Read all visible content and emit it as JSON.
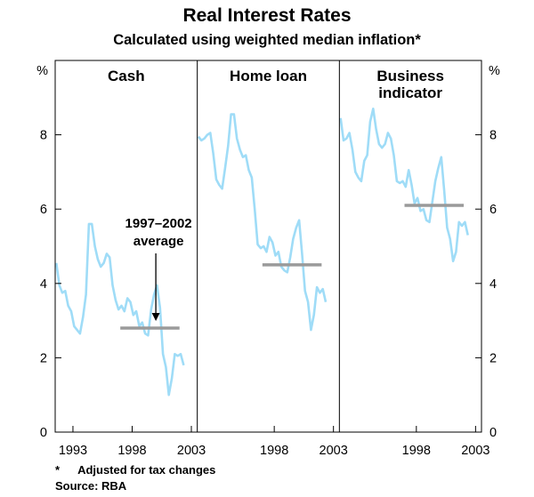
{
  "title": "Real Interest Rates",
  "subtitle": "Calculated using weighted median inflation*",
  "footnote_marker": "*",
  "footnote_text": "Adjusted for tax changes",
  "source": "Source: RBA",
  "colors": {
    "line": "#9fdcf7",
    "average": "#9a9a9a",
    "axis": "#000000"
  },
  "chart_data": {
    "type": "line",
    "yunit": "%",
    "ylim": [
      0,
      10
    ],
    "yticks": [
      0,
      2,
      4,
      6,
      8
    ],
    "annotation": {
      "text1": "1997–2002",
      "text2": "average",
      "x": 2000.0,
      "y": 2.8
    },
    "panels": [
      {
        "name": "Cash",
        "title_lines": [
          "Cash"
        ],
        "xlim": [
          1991.5,
          2003.5
        ],
        "xticks": [
          {
            "value": 1993,
            "label": "1993"
          },
          {
            "value": 1998,
            "label": "1998"
          },
          {
            "value": 2003,
            "label": "2003"
          }
        ],
        "average": {
          "value": 2.8,
          "from": 1997.0,
          "to": 2002.0
        },
        "series": {
          "name": "Cash",
          "points": [
            [
              1991.6,
              4.55
            ],
            [
              1991.85,
              3.95
            ],
            [
              1992.1,
              3.75
            ],
            [
              1992.35,
              3.8
            ],
            [
              1992.6,
              3.4
            ],
            [
              1992.85,
              3.25
            ],
            [
              1993.1,
              2.85
            ],
            [
              1993.35,
              2.75
            ],
            [
              1993.6,
              2.65
            ],
            [
              1993.85,
              3.1
            ],
            [
              1994.1,
              3.7
            ],
            [
              1994.35,
              5.6
            ],
            [
              1994.6,
              5.6
            ],
            [
              1994.85,
              5.0
            ],
            [
              1995.1,
              4.65
            ],
            [
              1995.35,
              4.45
            ],
            [
              1995.6,
              4.55
            ],
            [
              1995.85,
              4.8
            ],
            [
              1996.1,
              4.7
            ],
            [
              1996.35,
              3.95
            ],
            [
              1996.6,
              3.55
            ],
            [
              1996.85,
              3.3
            ],
            [
              1997.1,
              3.4
            ],
            [
              1997.35,
              3.25
            ],
            [
              1997.6,
              3.6
            ],
            [
              1997.85,
              3.5
            ],
            [
              1998.1,
              3.15
            ],
            [
              1998.35,
              3.25
            ],
            [
              1998.6,
              2.85
            ],
            [
              1998.85,
              2.95
            ],
            [
              1999.1,
              2.65
            ],
            [
              1999.35,
              2.6
            ],
            [
              1999.6,
              3.3
            ],
            [
              1999.85,
              3.7
            ],
            [
              2000.1,
              3.95
            ],
            [
              2000.35,
              3.35
            ],
            [
              2000.6,
              2.1
            ],
            [
              2000.85,
              1.75
            ],
            [
              2001.1,
              1.0
            ],
            [
              2001.35,
              1.45
            ],
            [
              2001.6,
              2.1
            ],
            [
              2001.85,
              2.05
            ],
            [
              2002.1,
              2.1
            ],
            [
              2002.35,
              1.8
            ]
          ]
        }
      },
      {
        "name": "Home loan",
        "title_lines": [
          "Home loan"
        ],
        "xlim": [
          1991.5,
          2003.5
        ],
        "xticks": [
          {
            "value": 1998,
            "label": "1998"
          },
          {
            "value": 2003,
            "label": "2003"
          }
        ],
        "average": {
          "value": 4.5,
          "from": 1997.0,
          "to": 2002.0
        },
        "series": {
          "name": "Home loan",
          "points": [
            [
              1991.6,
              7.95
            ],
            [
              1991.85,
              7.85
            ],
            [
              1992.1,
              7.9
            ],
            [
              1992.35,
              8.0
            ],
            [
              1992.6,
              8.05
            ],
            [
              1992.85,
              7.5
            ],
            [
              1993.1,
              6.8
            ],
            [
              1993.35,
              6.65
            ],
            [
              1993.6,
              6.55
            ],
            [
              1993.85,
              7.1
            ],
            [
              1994.1,
              7.7
            ],
            [
              1994.35,
              8.55
            ],
            [
              1994.6,
              8.55
            ],
            [
              1994.85,
              7.9
            ],
            [
              1995.1,
              7.6
            ],
            [
              1995.35,
              7.4
            ],
            [
              1995.6,
              7.45
            ],
            [
              1995.85,
              7.05
            ],
            [
              1996.1,
              6.85
            ],
            [
              1996.35,
              6.0
            ],
            [
              1996.6,
              5.05
            ],
            [
              1996.85,
              4.95
            ],
            [
              1997.1,
              5.0
            ],
            [
              1997.35,
              4.85
            ],
            [
              1997.6,
              5.25
            ],
            [
              1997.85,
              5.1
            ],
            [
              1998.1,
              4.75
            ],
            [
              1998.35,
              4.85
            ],
            [
              1998.6,
              4.45
            ],
            [
              1998.85,
              4.35
            ],
            [
              1999.1,
              4.3
            ],
            [
              1999.35,
              4.7
            ],
            [
              1999.6,
              5.2
            ],
            [
              1999.85,
              5.5
            ],
            [
              2000.1,
              5.7
            ],
            [
              2000.35,
              4.8
            ],
            [
              2000.6,
              3.8
            ],
            [
              2000.85,
              3.5
            ],
            [
              2001.1,
              2.75
            ],
            [
              2001.35,
              3.15
            ],
            [
              2001.6,
              3.9
            ],
            [
              2001.85,
              3.75
            ],
            [
              2002.1,
              3.85
            ],
            [
              2002.35,
              3.5
            ]
          ]
        }
      },
      {
        "name": "Business indicator",
        "title_lines": [
          "Business",
          "indicator"
        ],
        "xlim": [
          1991.5,
          2003.5
        ],
        "xticks": [
          {
            "value": 1998,
            "label": "1998"
          },
          {
            "value": 2003,
            "label": "2003"
          }
        ],
        "average": {
          "value": 6.1,
          "from": 1997.0,
          "to": 2002.0
        },
        "series": {
          "name": "Business indicator",
          "points": [
            [
              1991.6,
              8.45
            ],
            [
              1991.85,
              7.85
            ],
            [
              1992.1,
              7.9
            ],
            [
              1992.35,
              8.05
            ],
            [
              1992.6,
              7.6
            ],
            [
              1992.85,
              7.0
            ],
            [
              1993.1,
              6.85
            ],
            [
              1993.35,
              6.75
            ],
            [
              1993.6,
              7.3
            ],
            [
              1993.85,
              7.45
            ],
            [
              1994.1,
              8.35
            ],
            [
              1994.35,
              8.7
            ],
            [
              1994.6,
              8.15
            ],
            [
              1994.85,
              7.75
            ],
            [
              1995.1,
              7.65
            ],
            [
              1995.35,
              7.75
            ],
            [
              1995.6,
              8.05
            ],
            [
              1995.85,
              7.9
            ],
            [
              1996.1,
              7.45
            ],
            [
              1996.35,
              6.75
            ],
            [
              1996.6,
              6.7
            ],
            [
              1996.85,
              6.75
            ],
            [
              1997.1,
              6.6
            ],
            [
              1997.35,
              7.05
            ],
            [
              1997.6,
              6.65
            ],
            [
              1997.85,
              6.15
            ],
            [
              1998.1,
              6.3
            ],
            [
              1998.35,
              5.95
            ],
            [
              1998.6,
              6.0
            ],
            [
              1998.85,
              5.7
            ],
            [
              1999.1,
              5.65
            ],
            [
              1999.35,
              6.2
            ],
            [
              1999.6,
              6.75
            ],
            [
              1999.85,
              7.1
            ],
            [
              2000.1,
              7.4
            ],
            [
              2000.35,
              6.5
            ],
            [
              2000.6,
              5.5
            ],
            [
              2000.85,
              5.2
            ],
            [
              2001.1,
              4.6
            ],
            [
              2001.35,
              4.85
            ],
            [
              2001.6,
              5.65
            ],
            [
              2001.85,
              5.55
            ],
            [
              2002.1,
              5.65
            ],
            [
              2002.35,
              5.3
            ]
          ]
        }
      }
    ]
  }
}
